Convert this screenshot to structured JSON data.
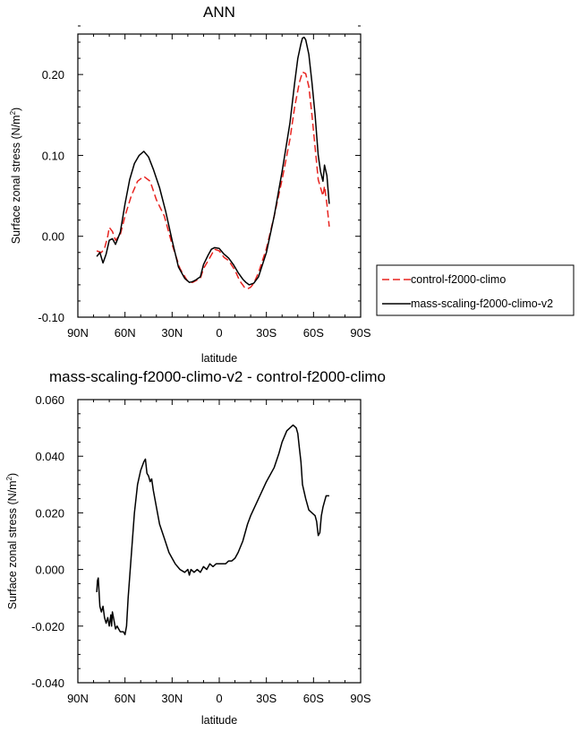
{
  "chart_data": [
    {
      "type": "line",
      "title": "ANN",
      "xlabel": "latitude",
      "ylabel": "Surface zonal stress (N/m",
      "ylabel_sup": "2",
      "ylabel_close": ")",
      "xlim": [
        90,
        -90
      ],
      "ylim": [
        -0.1,
        0.25
      ],
      "xticks": [
        90,
        60,
        30,
        0,
        -30,
        -60,
        -90
      ],
      "xtick_labels": [
        "90N",
        "60N",
        "30N",
        "0",
        "30S",
        "60S",
        "90S"
      ],
      "yticks": [
        -0.1,
        0.0,
        0.1,
        0.2
      ],
      "ytick_labels": [
        "-0.10",
        "0.00",
        "0.10",
        "0.20"
      ],
      "legend_position": "outside-right",
      "series": [
        {
          "name": "control-f2000-climo",
          "color": "#e8231f",
          "dash": "dashed",
          "x": [
            78,
            75,
            73,
            71,
            70,
            68,
            66,
            63,
            60,
            56,
            52,
            48,
            44,
            40,
            35,
            30,
            25,
            20,
            17,
            14,
            12,
            10,
            7,
            5,
            3,
            0,
            -3,
            -6,
            -10,
            -13,
            -16,
            -18,
            -20,
            -22,
            -25,
            -30,
            -35,
            -40,
            -45,
            -48,
            -51,
            -53,
            -55,
            -57,
            -59,
            -61,
            -63,
            -64.5,
            -66,
            -67,
            -68.5,
            -70
          ],
          "values": [
            -0.018,
            -0.02,
            -0.015,
            0.0,
            0.011,
            0.006,
            -0.005,
            0.002,
            0.025,
            0.05,
            0.068,
            0.074,
            0.068,
            0.045,
            0.025,
            -0.01,
            -0.04,
            -0.056,
            -0.057,
            -0.054,
            -0.052,
            -0.04,
            -0.03,
            -0.023,
            -0.016,
            -0.018,
            -0.026,
            -0.03,
            -0.042,
            -0.055,
            -0.063,
            -0.065,
            -0.063,
            -0.058,
            -0.045,
            -0.015,
            0.025,
            0.07,
            0.12,
            0.16,
            0.19,
            0.203,
            0.201,
            0.185,
            0.15,
            0.11,
            0.07,
            0.06,
            0.05,
            0.062,
            0.04,
            0.012
          ]
        },
        {
          "name": "mass-scaling-f2000-climo-v2",
          "color": "#000000",
          "dash": "solid",
          "x": [
            78,
            76,
            74,
            72,
            70,
            68,
            66,
            63,
            60,
            57,
            54,
            51,
            48,
            45,
            42,
            38,
            34,
            30,
            26,
            22,
            19,
            17,
            15,
            12,
            10,
            7,
            5,
            3,
            0,
            -3,
            -6,
            -9,
            -12,
            -15,
            -17,
            -19,
            -22,
            -25,
            -30,
            -35,
            -40,
            -45,
            -48,
            -50,
            -52,
            -53,
            -54,
            -55,
            -57,
            -59,
            -61,
            -63,
            -64.5,
            -66,
            -67,
            -68.5,
            -70
          ],
          "values": [
            -0.025,
            -0.02,
            -0.033,
            -0.022,
            -0.005,
            -0.003,
            -0.01,
            0.005,
            0.04,
            0.07,
            0.09,
            0.1,
            0.105,
            0.098,
            0.083,
            0.06,
            0.03,
            -0.005,
            -0.038,
            -0.052,
            -0.057,
            -0.056,
            -0.054,
            -0.05,
            -0.035,
            -0.023,
            -0.016,
            -0.014,
            -0.015,
            -0.022,
            -0.027,
            -0.035,
            -0.045,
            -0.053,
            -0.057,
            -0.06,
            -0.058,
            -0.05,
            -0.02,
            0.025,
            0.08,
            0.14,
            0.19,
            0.22,
            0.238,
            0.245,
            0.246,
            0.243,
            0.225,
            0.19,
            0.15,
            0.1,
            0.08,
            0.068,
            0.088,
            0.075,
            0.04
          ]
        }
      ]
    },
    {
      "type": "line",
      "title": "mass-scaling-f2000-climo-v2 - control-f2000-climo",
      "xlabel": "latitude",
      "ylabel": "Surface zonal stress (N/m",
      "ylabel_sup": "2",
      "ylabel_close": ")",
      "xlim": [
        90,
        -90
      ],
      "ylim": [
        -0.04,
        0.06
      ],
      "xticks": [
        90,
        60,
        30,
        0,
        -30,
        -60,
        -90
      ],
      "xtick_labels": [
        "90N",
        "60N",
        "30N",
        "0",
        "30S",
        "60S",
        "90S"
      ],
      "yticks": [
        -0.04,
        -0.02,
        0.0,
        0.02,
        0.04,
        0.06
      ],
      "ytick_labels": [
        "-0.040",
        "-0.020",
        "0.000",
        "0.020",
        "0.040",
        "0.060"
      ],
      "series": [
        {
          "color": "#000000",
          "dash": "solid",
          "x": [
            78,
            77.5,
            77,
            76,
            75,
            74,
            73,
            72,
            71,
            70,
            69,
            68.5,
            68,
            67,
            66,
            65,
            64,
            63,
            62,
            61,
            60,
            59,
            58,
            56,
            54,
            52,
            50,
            48,
            47,
            46,
            45,
            44,
            43,
            42,
            40,
            38,
            35,
            32,
            30,
            28,
            25,
            22,
            20,
            19,
            18,
            16,
            14,
            12,
            10,
            8,
            6,
            4,
            2,
            0,
            -2,
            -4,
            -6,
            -8,
            -10,
            -12,
            -15,
            -18,
            -20,
            -25,
            -30,
            -35,
            -38,
            -40,
            -43,
            -45,
            -47,
            -49,
            -50,
            -51,
            -52,
            -53,
            -55,
            -57,
            -59,
            -61,
            -62,
            -63,
            -64,
            -65,
            -66,
            -67,
            -68,
            -70
          ],
          "values": [
            -0.008,
            -0.004,
            -0.003,
            -0.013,
            -0.015,
            -0.013,
            -0.017,
            -0.019,
            -0.017,
            -0.02,
            -0.016,
            -0.02,
            -0.015,
            -0.018,
            -0.021,
            -0.02,
            -0.021,
            -0.022,
            -0.022,
            -0.022,
            -0.023,
            -0.02,
            -0.01,
            0.005,
            0.02,
            0.03,
            0.035,
            0.038,
            0.039,
            0.034,
            0.033,
            0.031,
            0.032,
            0.028,
            0.022,
            0.016,
            0.011,
            0.006,
            0.004,
            0.002,
            0.0,
            -0.001,
            0.0,
            -0.002,
            0.0,
            -0.001,
            0.0,
            -0.001,
            0.001,
            0.0,
            0.002,
            0.001,
            0.002,
            0.002,
            0.002,
            0.002,
            0.003,
            0.003,
            0.004,
            0.006,
            0.01,
            0.016,
            0.019,
            0.025,
            0.031,
            0.036,
            0.041,
            0.045,
            0.049,
            0.05,
            0.051,
            0.05,
            0.048,
            0.043,
            0.038,
            0.03,
            0.025,
            0.021,
            0.02,
            0.019,
            0.017,
            0.012,
            0.013,
            0.019,
            0.022,
            0.024,
            0.026,
            0.026
          ]
        }
      ]
    }
  ]
}
